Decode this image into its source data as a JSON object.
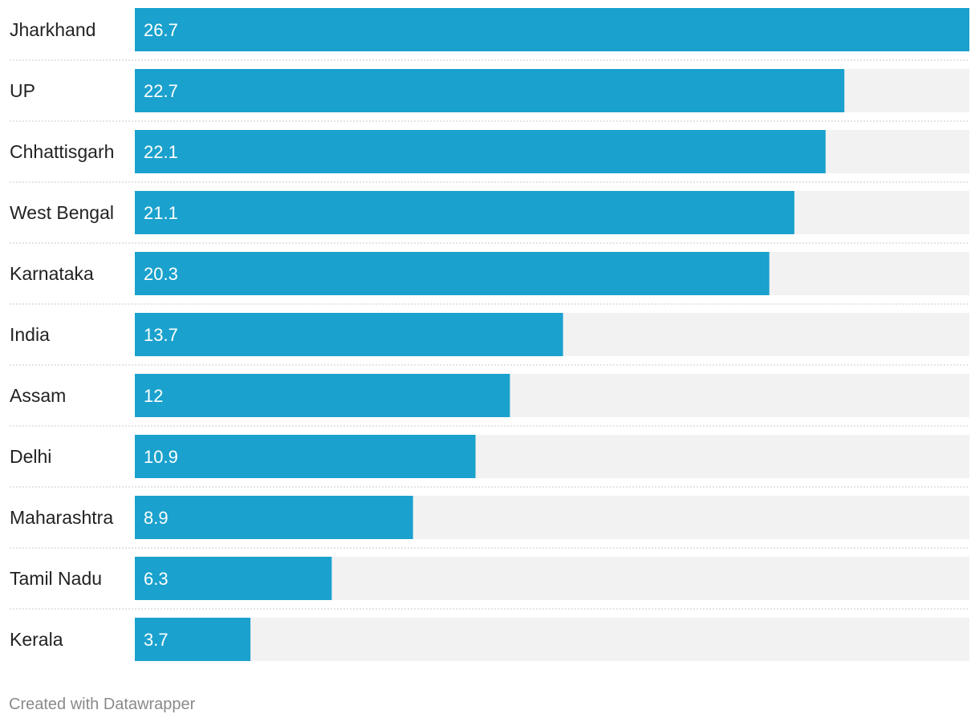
{
  "chart_data": {
    "type": "bar",
    "orientation": "horizontal",
    "categories": [
      "Jharkhand",
      "UP",
      "Chhattisgarh",
      "West Bengal",
      "Karnataka",
      "India",
      "Assam",
      "Delhi",
      "Maharashtra",
      "Tamil Nadu",
      "Kerala"
    ],
    "values": [
      26.7,
      22.7,
      22.1,
      21.1,
      20.3,
      13.7,
      12,
      10.9,
      8.9,
      6.3,
      3.7
    ],
    "value_labels": [
      "26.7",
      "22.7",
      "22.1",
      "21.1",
      "20.3",
      "13.7",
      "12",
      "10.9",
      "8.9",
      "6.3",
      "3.7"
    ],
    "xlim": [
      0,
      26.7
    ],
    "grid": false,
    "bar_color": "#1aa1cd",
    "track_color": "#f2f2f2"
  },
  "footer": {
    "credit": "Created with Datawrapper"
  }
}
